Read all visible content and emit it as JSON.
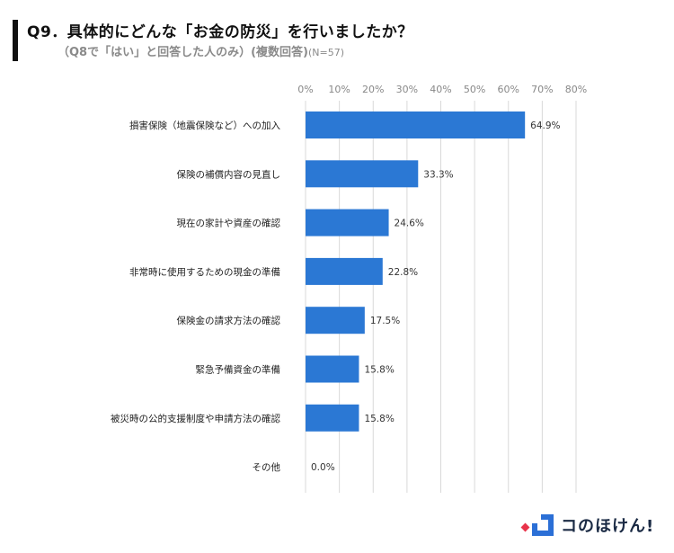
{
  "header": {
    "title": "Q9．具体的にどんな「お金の防災」を行いましたか？",
    "subtitle": "（Q8で「はい」と回答した人のみ）(複数回答)",
    "n_label": "(N=57)"
  },
  "logo": {
    "text": "コのほけん!",
    "icon": "konohoken-logo-icon",
    "colors": {
      "red": "#e8334a",
      "blue": "#2b6fd6"
    }
  },
  "chart_data": {
    "type": "bar",
    "orientation": "horizontal",
    "categories": [
      "損害保険（地震保険など）への加入",
      "保険の補償内容の見直し",
      "現在の家計や資産の確認",
      "非常時に使用するための現金の準備",
      "保険金の請求方法の確認",
      "緊急予備資金の準備",
      "被災時の公的支援制度や申請方法の確認",
      "その他"
    ],
    "values": [
      64.9,
      33.3,
      24.6,
      22.8,
      17.5,
      15.8,
      15.8,
      0.0
    ],
    "value_labels": [
      "64.9%",
      "33.3%",
      "24.6%",
      "22.8%",
      "17.5%",
      "15.8%",
      "15.8%",
      "0.0%"
    ],
    "xticks": [
      "0%",
      "10%",
      "20%",
      "30%",
      "40%",
      "50%",
      "60%",
      "70%",
      "80%"
    ],
    "xlim": [
      0,
      80
    ],
    "grid": true,
    "legend": "none",
    "bar_color": "#2b78d4",
    "grid_color": "#d9d9d9"
  }
}
